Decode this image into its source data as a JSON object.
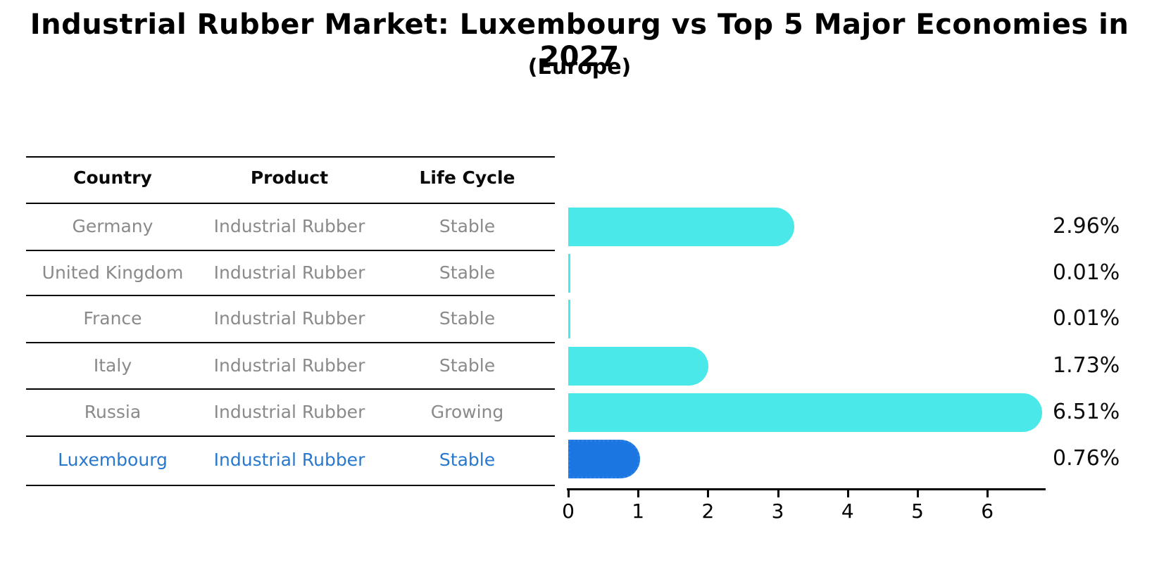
{
  "header": {
    "title": "Industrial Rubber Market: Luxembourg vs Top 5 Major Economies in 2027",
    "subtitle": "(Europe)"
  },
  "table": {
    "columns": [
      "Country",
      "Product",
      "Life Cycle"
    ],
    "rows": [
      {
        "country": "Germany",
        "product": "Industrial Rubber",
        "life_cycle": "Stable",
        "highlight": false
      },
      {
        "country": "United Kingdom",
        "product": "Industrial Rubber",
        "life_cycle": "Stable",
        "highlight": false
      },
      {
        "country": "France",
        "product": "Industrial Rubber",
        "life_cycle": "Stable",
        "highlight": false
      },
      {
        "country": "Italy",
        "product": "Industrial Rubber",
        "life_cycle": "Stable",
        "highlight": false
      },
      {
        "country": "Russia",
        "product": "Industrial Rubber",
        "life_cycle": "Growing",
        "highlight": false
      },
      {
        "country": "Luxembourg",
        "product": "Industrial Rubber",
        "life_cycle": "Stable",
        "highlight": true
      }
    ]
  },
  "chart_data": {
    "type": "bar",
    "orientation": "horizontal",
    "title": "Industrial Rubber Market: Luxembourg vs Top 5 Major Economies in 2027",
    "subtitle": "(Europe)",
    "categories": [
      "Germany",
      "United Kingdom",
      "France",
      "Italy",
      "Russia",
      "Luxembourg"
    ],
    "values": [
      2.96,
      0.01,
      0.01,
      1.73,
      6.51,
      0.76
    ],
    "value_labels": [
      "2.96%",
      "0.01%",
      "0.01%",
      "1.73%",
      "6.51%",
      "0.76%"
    ],
    "unit": "percent",
    "x_ticks": [
      0,
      1,
      2,
      3,
      4,
      5,
      6
    ],
    "xlim": [
      0,
      6.8
    ],
    "grid": false,
    "legend": "none",
    "bar_color": "#4ae8e8",
    "highlight_bar_color": "#1c76e1",
    "highlight_index": 5
  },
  "colors": {
    "bar_cyan": "#4ae8e8",
    "bar_blue": "#1c76e1",
    "highlight_text_blue": "#2878cd",
    "table_text_gray": "#8a8a8a",
    "text_black": "#000000"
  }
}
